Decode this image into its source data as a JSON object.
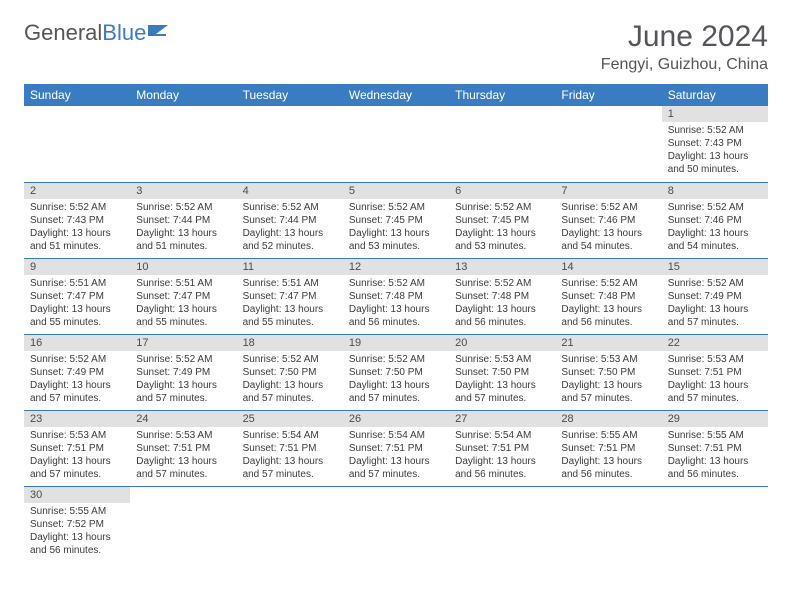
{
  "logo": {
    "text1": "General",
    "text2": "Blue"
  },
  "title": "June 2024",
  "location": "Fengyi, Guizhou, China",
  "daysOfWeek": [
    "Sunday",
    "Monday",
    "Tuesday",
    "Wednesday",
    "Thursday",
    "Friday",
    "Saturday"
  ],
  "colors": {
    "headerBg": "#3a7cc2",
    "daynumBg": "#e1e1e1",
    "text": "#55565a"
  },
  "weeks": [
    [
      null,
      null,
      null,
      null,
      null,
      null,
      {
        "n": "1",
        "sr": "Sunrise: 5:52 AM",
        "ss": "Sunset: 7:43 PM",
        "dl": "Daylight: 13 hours and 50 minutes."
      }
    ],
    [
      {
        "n": "2",
        "sr": "Sunrise: 5:52 AM",
        "ss": "Sunset: 7:43 PM",
        "dl": "Daylight: 13 hours and 51 minutes."
      },
      {
        "n": "3",
        "sr": "Sunrise: 5:52 AM",
        "ss": "Sunset: 7:44 PM",
        "dl": "Daylight: 13 hours and 51 minutes."
      },
      {
        "n": "4",
        "sr": "Sunrise: 5:52 AM",
        "ss": "Sunset: 7:44 PM",
        "dl": "Daylight: 13 hours and 52 minutes."
      },
      {
        "n": "5",
        "sr": "Sunrise: 5:52 AM",
        "ss": "Sunset: 7:45 PM",
        "dl": "Daylight: 13 hours and 53 minutes."
      },
      {
        "n": "6",
        "sr": "Sunrise: 5:52 AM",
        "ss": "Sunset: 7:45 PM",
        "dl": "Daylight: 13 hours and 53 minutes."
      },
      {
        "n": "7",
        "sr": "Sunrise: 5:52 AM",
        "ss": "Sunset: 7:46 PM",
        "dl": "Daylight: 13 hours and 54 minutes."
      },
      {
        "n": "8",
        "sr": "Sunrise: 5:52 AM",
        "ss": "Sunset: 7:46 PM",
        "dl": "Daylight: 13 hours and 54 minutes."
      }
    ],
    [
      {
        "n": "9",
        "sr": "Sunrise: 5:51 AM",
        "ss": "Sunset: 7:47 PM",
        "dl": "Daylight: 13 hours and 55 minutes."
      },
      {
        "n": "10",
        "sr": "Sunrise: 5:51 AM",
        "ss": "Sunset: 7:47 PM",
        "dl": "Daylight: 13 hours and 55 minutes."
      },
      {
        "n": "11",
        "sr": "Sunrise: 5:51 AM",
        "ss": "Sunset: 7:47 PM",
        "dl": "Daylight: 13 hours and 55 minutes."
      },
      {
        "n": "12",
        "sr": "Sunrise: 5:52 AM",
        "ss": "Sunset: 7:48 PM",
        "dl": "Daylight: 13 hours and 56 minutes."
      },
      {
        "n": "13",
        "sr": "Sunrise: 5:52 AM",
        "ss": "Sunset: 7:48 PM",
        "dl": "Daylight: 13 hours and 56 minutes."
      },
      {
        "n": "14",
        "sr": "Sunrise: 5:52 AM",
        "ss": "Sunset: 7:48 PM",
        "dl": "Daylight: 13 hours and 56 minutes."
      },
      {
        "n": "15",
        "sr": "Sunrise: 5:52 AM",
        "ss": "Sunset: 7:49 PM",
        "dl": "Daylight: 13 hours and 57 minutes."
      }
    ],
    [
      {
        "n": "16",
        "sr": "Sunrise: 5:52 AM",
        "ss": "Sunset: 7:49 PM",
        "dl": "Daylight: 13 hours and 57 minutes."
      },
      {
        "n": "17",
        "sr": "Sunrise: 5:52 AM",
        "ss": "Sunset: 7:49 PM",
        "dl": "Daylight: 13 hours and 57 minutes."
      },
      {
        "n": "18",
        "sr": "Sunrise: 5:52 AM",
        "ss": "Sunset: 7:50 PM",
        "dl": "Daylight: 13 hours and 57 minutes."
      },
      {
        "n": "19",
        "sr": "Sunrise: 5:52 AM",
        "ss": "Sunset: 7:50 PM",
        "dl": "Daylight: 13 hours and 57 minutes."
      },
      {
        "n": "20",
        "sr": "Sunrise: 5:53 AM",
        "ss": "Sunset: 7:50 PM",
        "dl": "Daylight: 13 hours and 57 minutes."
      },
      {
        "n": "21",
        "sr": "Sunrise: 5:53 AM",
        "ss": "Sunset: 7:50 PM",
        "dl": "Daylight: 13 hours and 57 minutes."
      },
      {
        "n": "22",
        "sr": "Sunrise: 5:53 AM",
        "ss": "Sunset: 7:51 PM",
        "dl": "Daylight: 13 hours and 57 minutes."
      }
    ],
    [
      {
        "n": "23",
        "sr": "Sunrise: 5:53 AM",
        "ss": "Sunset: 7:51 PM",
        "dl": "Daylight: 13 hours and 57 minutes."
      },
      {
        "n": "24",
        "sr": "Sunrise: 5:53 AM",
        "ss": "Sunset: 7:51 PM",
        "dl": "Daylight: 13 hours and 57 minutes."
      },
      {
        "n": "25",
        "sr": "Sunrise: 5:54 AM",
        "ss": "Sunset: 7:51 PM",
        "dl": "Daylight: 13 hours and 57 minutes."
      },
      {
        "n": "26",
        "sr": "Sunrise: 5:54 AM",
        "ss": "Sunset: 7:51 PM",
        "dl": "Daylight: 13 hours and 57 minutes."
      },
      {
        "n": "27",
        "sr": "Sunrise: 5:54 AM",
        "ss": "Sunset: 7:51 PM",
        "dl": "Daylight: 13 hours and 56 minutes."
      },
      {
        "n": "28",
        "sr": "Sunrise: 5:55 AM",
        "ss": "Sunset: 7:51 PM",
        "dl": "Daylight: 13 hours and 56 minutes."
      },
      {
        "n": "29",
        "sr": "Sunrise: 5:55 AM",
        "ss": "Sunset: 7:51 PM",
        "dl": "Daylight: 13 hours and 56 minutes."
      }
    ],
    [
      {
        "n": "30",
        "sr": "Sunrise: 5:55 AM",
        "ss": "Sunset: 7:52 PM",
        "dl": "Daylight: 13 hours and 56 minutes."
      },
      null,
      null,
      null,
      null,
      null,
      null
    ]
  ]
}
